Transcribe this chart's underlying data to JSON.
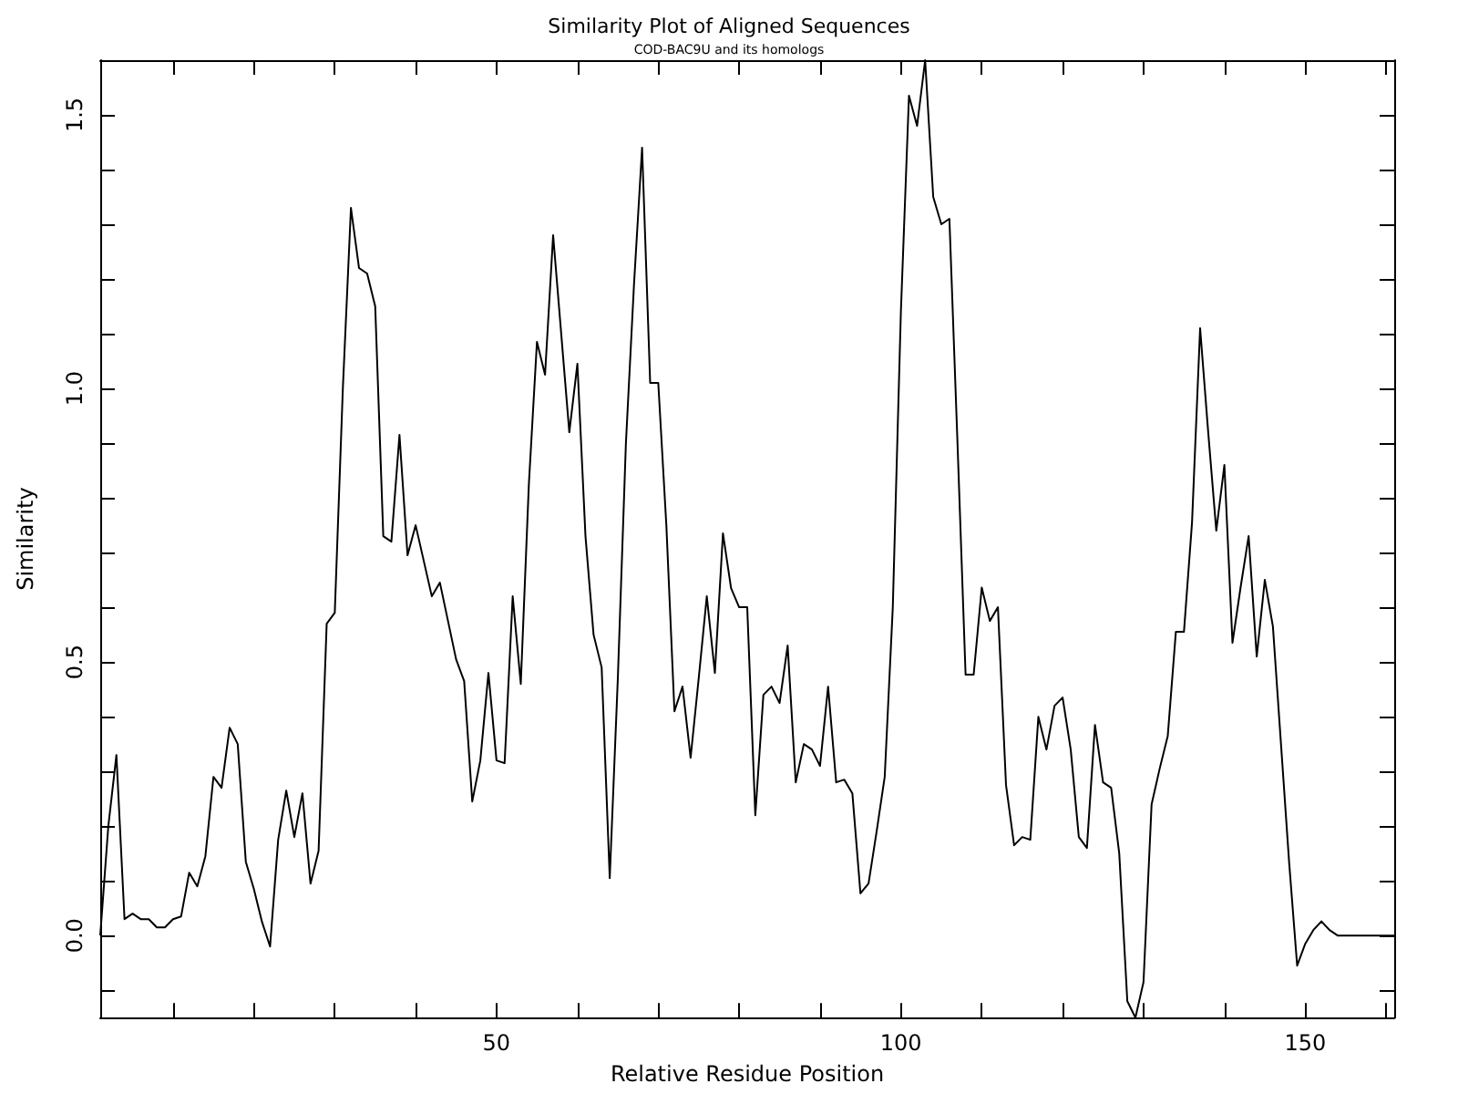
{
  "chart_data": {
    "type": "line",
    "title": "Similarity Plot of Aligned Sequences",
    "subtitle": "COD-BAC9U and its homologs",
    "xlabel": "Relative Residue Position",
    "ylabel": "Similarity",
    "series": [
      {
        "color": "#000000",
        "x": [
          1,
          2,
          3,
          4,
          5,
          6,
          7,
          8,
          9,
          10,
          11,
          12,
          13,
          14,
          15,
          16,
          17,
          18,
          19,
          20,
          21,
          22,
          23,
          24,
          25,
          26,
          27,
          28,
          29,
          30,
          31,
          32,
          33,
          34,
          35,
          36,
          37,
          38,
          39,
          40,
          42,
          43,
          45,
          46,
          47,
          48,
          49,
          50,
          51,
          52,
          53,
          54,
          55,
          56,
          57,
          58,
          59,
          60,
          61,
          62,
          63,
          64,
          65,
          66,
          67,
          68,
          69,
          70,
          71,
          72,
          73,
          74,
          75,
          76,
          77,
          78,
          79,
          80,
          81,
          82,
          83,
          84,
          85,
          86,
          87,
          88,
          89,
          90,
          91,
          92,
          93,
          94,
          95,
          96,
          97,
          98,
          99,
          100,
          101,
          102,
          103,
          104,
          105,
          106,
          107,
          108,
          109,
          110,
          111,
          112,
          113,
          114,
          115,
          116,
          117,
          118,
          119,
          120,
          121,
          122,
          123,
          124,
          125,
          126,
          127,
          128,
          129,
          130,
          131,
          132,
          133,
          134,
          135,
          136,
          137,
          138,
          139,
          140,
          141,
          142,
          143,
          144,
          145,
          146,
          147,
          148,
          149,
          150,
          151,
          152,
          153,
          154,
          161
        ],
        "values": [
          0,
          0.2,
          0.33,
          0.03,
          0.04,
          0.03,
          0.03,
          0.015,
          0.015,
          0.03,
          0.035,
          0.115,
          0.09,
          0.145,
          0.29,
          0.27,
          0.38,
          0.35,
          0.135,
          0.085,
          0.025,
          -0.02,
          0.175,
          0.265,
          0.18,
          0.26,
          0.095,
          0.155,
          0.57,
          0.59,
          1.0,
          1.33,
          1.22,
          1.21,
          1.15,
          0.73,
          0.72,
          0.915,
          0.695,
          0.75,
          0.62,
          0.645,
          0.505,
          0.465,
          0.245,
          0.32,
          0.48,
          0.32,
          0.315,
          0.62,
          0.46,
          0.825,
          1.085,
          1.025,
          1.28,
          1.1,
          0.92,
          1.045,
          0.73,
          0.55,
          0.49,
          0.105,
          0.47,
          0.9,
          1.19,
          1.44,
          1.01,
          1.01,
          0.75,
          0.41,
          0.455,
          0.325,
          0.47,
          0.62,
          0.48,
          0.735,
          0.635,
          0.6,
          0.6,
          0.22,
          0.44,
          0.455,
          0.425,
          0.53,
          0.28,
          0.35,
          0.34,
          0.31,
          0.455,
          0.28,
          0.285,
          0.26,
          0.077,
          0.095,
          0.19,
          0.29,
          0.6,
          1.14,
          1.535,
          1.48,
          1.6,
          1.35,
          1.3,
          1.31,
          0.9,
          0.477,
          0.477,
          0.636,
          0.575,
          0.6,
          0.275,
          0.165,
          0.18,
          0.175,
          0.4,
          0.34,
          0.42,
          0.435,
          0.34,
          0.18,
          0.16,
          0.385,
          0.28,
          0.27,
          0.15,
          -0.12,
          -0.15,
          -0.085,
          0.24,
          0.305,
          0.365,
          0.555,
          0.555,
          0.755,
          1.11,
          0.92,
          0.74,
          0.86,
          0.535,
          0.636,
          0.73,
          0.51,
          0.65,
          0.565,
          0.35,
          0.135,
          -0.055,
          -0.015,
          0.01,
          0.026,
          0.01,
          0,
          0
        ]
      }
    ],
    "xlim": [
      1,
      161
    ],
    "xticks": [
      {
        "value": 10,
        "label": null
      },
      {
        "value": 20,
        "label": null
      },
      {
        "value": 30,
        "label": null
      },
      {
        "value": 40,
        "label": null
      },
      50,
      {
        "value": 60,
        "label": null
      },
      {
        "value": 70,
        "label": null
      },
      {
        "value": 80,
        "label": null
      },
      {
        "value": 90,
        "label": null
      },
      100,
      {
        "value": 110,
        "label": null
      },
      {
        "value": 120,
        "label": null
      },
      {
        "value": 130,
        "label": null
      },
      {
        "value": 140,
        "label": null
      },
      150,
      {
        "value": 160,
        "label": null
      }
    ],
    "ylim": [
      -0.15,
      1.6
    ],
    "yticks": [
      {
        "value": -0.1,
        "label": null
      },
      {
        "value": 0,
        "label": "0.0"
      },
      {
        "value": 0.1,
        "label": null
      },
      {
        "value": 0.2,
        "label": null
      },
      {
        "value": 0.3,
        "label": null
      },
      {
        "value": 0.4,
        "label": null
      },
      {
        "value": 0.5,
        "label": "0.5"
      },
      {
        "value": 0.6,
        "label": null
      },
      {
        "value": 0.7,
        "label": null
      },
      {
        "value": 0.8,
        "label": null
      },
      {
        "value": 0.9,
        "label": null
      },
      {
        "value": 1.0,
        "label": "1.0"
      },
      {
        "value": 1.1,
        "label": null
      },
      {
        "value": 1.2,
        "label": null
      },
      {
        "value": 1.3,
        "label": null
      },
      {
        "value": 1.4,
        "label": null
      },
      {
        "value": 1.5,
        "label": "1.5"
      }
    ],
    "marker": "none",
    "line_style": "solid",
    "grid": false
  }
}
